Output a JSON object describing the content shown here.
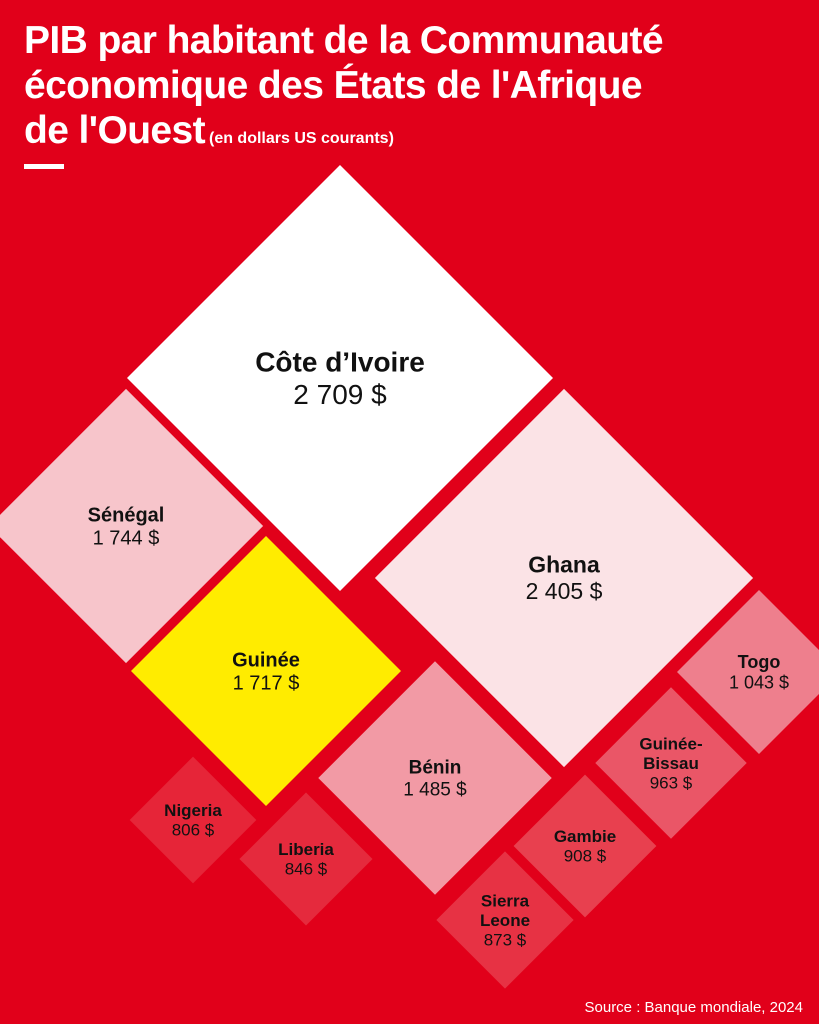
{
  "header": {
    "title_lines": [
      "PIB par habitant de la Communauté",
      "économique des États de l'Afrique",
      "de l'Ouest"
    ],
    "subtitle": "(en dollars US courants)"
  },
  "footer": {
    "source": "Source : Banque mondiale, 2024"
  },
  "colors": {
    "background": "#e1001a",
    "text_light": "#ffffff",
    "text_dark": "#111111"
  },
  "chart_data": {
    "type": "diamond-treemap",
    "title": "PIB par habitant de la Communauté économique des États de l'Afrique de l'Ouest",
    "subtitle": "(en dollars US courants)",
    "unit": "$",
    "items": [
      {
        "country": "Côte d'Ivoire",
        "label_lines": [
          "Côte d’Ivoire"
        ],
        "value": 2709,
        "value_label": "2 709 $",
        "color": "#ffffff"
      },
      {
        "country": "Ghana",
        "label_lines": [
          "Ghana"
        ],
        "value": 2405,
        "value_label": "2 405 $",
        "color": "#fbe3e6"
      },
      {
        "country": "Sénégal",
        "label_lines": [
          "Sénégal"
        ],
        "value": 1744,
        "value_label": "1 744 $",
        "color": "#f7c5cb"
      },
      {
        "country": "Guinée",
        "label_lines": [
          "Guinée"
        ],
        "value": 1717,
        "value_label": "1 717 $",
        "color": "#ffec00"
      },
      {
        "country": "Bénin",
        "label_lines": [
          "Bénin"
        ],
        "value": 1485,
        "value_label": "1 485 $",
        "color": "#f29aa5"
      },
      {
        "country": "Togo",
        "label_lines": [
          "Togo"
        ],
        "value": 1043,
        "value_label": "1 043 $",
        "color": "#ee7f8d"
      },
      {
        "country": "Guinée-Bissau",
        "label_lines": [
          "Guinée-",
          "Bissau"
        ],
        "value": 963,
        "value_label": "963 $",
        "color": "#ea5667"
      },
      {
        "country": "Gambie",
        "label_lines": [
          "Gambie"
        ],
        "value": 908,
        "value_label": "908 $",
        "color": "#e8404f"
      },
      {
        "country": "Sierra Leone",
        "label_lines": [
          "Sierra",
          "Leone"
        ],
        "value": 873,
        "value_label": "873 $",
        "color": "#e73244"
      },
      {
        "country": "Liberia",
        "label_lines": [
          "Liberia"
        ],
        "value": 846,
        "value_label": "846 $",
        "color": "#e52a3d"
      },
      {
        "country": "Nigeria",
        "label_lines": [
          "Nigeria"
        ],
        "value": 806,
        "value_label": "806 $",
        "color": "#e62538"
      }
    ]
  }
}
